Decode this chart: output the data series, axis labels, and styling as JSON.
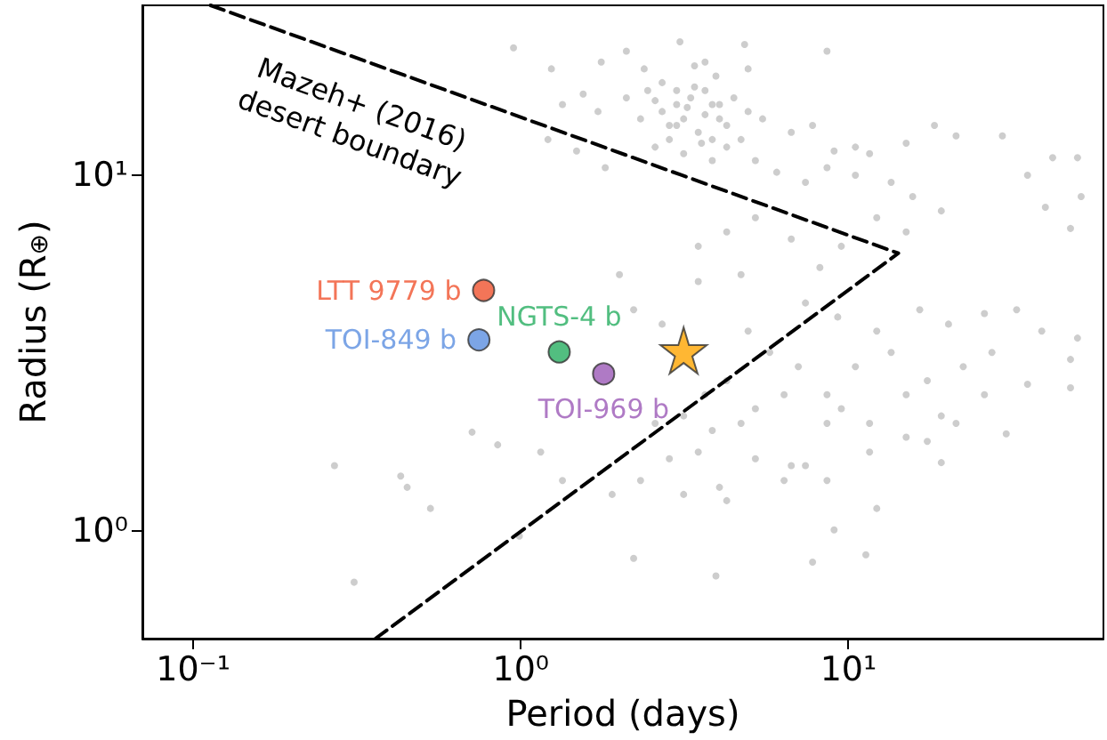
{
  "chart_data": {
    "type": "scatter",
    "xlabel": "Period (days)",
    "ylabel": "Radius (R$_{⊕}$)",
    "log": "xy",
    "xlim": [
      0.07,
      60
    ],
    "ylim": [
      0.5,
      30
    ],
    "xticks": [
      {
        "value": 0.1,
        "label": "10⁻¹"
      },
      {
        "value": 1,
        "label": "10⁰"
      },
      {
        "value": 10,
        "label": "10¹"
      }
    ],
    "yticks": [
      {
        "value": 1,
        "label": "10⁰"
      },
      {
        "value": 10,
        "label": "10¹"
      }
    ],
    "annotations": [
      "Mazeh+ (2016)\ndesert boundary"
    ],
    "series": [
      {
        "color": "#c0c0c0",
        "marker": "circle",
        "x": [
          0.95,
          1.24,
          1.76,
          2.1,
          2.38,
          3.06,
          3.39,
          3.65,
          4.82,
          3.94,
          8.6,
          4.94,
          1.34,
          1.55,
          1.72,
          2.1,
          2.44,
          2.7,
          2.99,
          3.3,
          3.65,
          4.04,
          4.47,
          4.94,
          5.47,
          2.32,
          2.84,
          3.14,
          3.48,
          3.84,
          4.25,
          4.7,
          2.57,
          3.14,
          3.84,
          5.2,
          6.69,
          7.77,
          9.04,
          10.5,
          11.6,
          15.0,
          18.3,
          21.3,
          29.5,
          42.0,
          50.0,
          35.2,
          39.9,
          47.6,
          51.3,
          1.21,
          1.48,
          1.81,
          6.04,
          7.39,
          8.6,
          10.5,
          13.5,
          15.7,
          19.2,
          12.2,
          15.0,
          4.25,
          5.2,
          3.48,
          6.69,
          8.18,
          9.51,
          2.0,
          3.48,
          4.7,
          2.21,
          2.7,
          7.39,
          9.27,
          12.2,
          16.5,
          20.2,
          26.0,
          32.6,
          38.9,
          47.6,
          50.0,
          27.4,
          22.4,
          17.4,
          13.5,
          10.5,
          8.6,
          7.03,
          5.75,
          4.94,
          4.25,
          5.2,
          6.36,
          9.51,
          11.6,
          15.0,
          19.2,
          26.0,
          35.2,
          47.6,
          30.3,
          19.2,
          15.0,
          11.6,
          8.6,
          6.69,
          5.2,
          4.7,
          3.84,
          3.65,
          3.14,
          3.48,
          4.04,
          2.84,
          2.32,
          2.21,
          3.94,
          7.77,
          11.3,
          12.2,
          17.4,
          21.3,
          0.27,
          0.43,
          0.45,
          0.53,
          0.71,
          0.85,
          1.15,
          1.34,
          0.99,
          0.31,
          2.57,
          1.9,
          8.6,
          6.36,
          7.39,
          4.25,
          3.14,
          9.04,
          2.7,
          2.99,
          3.65,
          4.04,
          3.22,
          3.56,
          2.84,
          4.25,
          3.84,
          3.39,
          2.99,
          2.57
        ],
        "values": [
          22.8,
          19.9,
          20.8,
          22.3,
          19.9,
          23.7,
          20.3,
          20.8,
          23.3,
          19.0,
          22.3,
          19.9,
          15.8,
          16.9,
          15.1,
          16.5,
          17.3,
          18.2,
          15.8,
          16.5,
          17.3,
          15.8,
          16.5,
          15.1,
          14.4,
          14.4,
          13.8,
          14.4,
          13.2,
          12.6,
          13.8,
          12.6,
          12.0,
          11.5,
          11.0,
          11.0,
          13.2,
          13.8,
          11.7,
          12.0,
          11.5,
          12.3,
          13.8,
          12.9,
          12.9,
          11.2,
          11.2,
          10.0,
          8.13,
          7.09,
          8.71,
          12.6,
          11.7,
          10.5,
          10.2,
          9.55,
          10.5,
          10.0,
          9.55,
          8.71,
          7.94,
          7.6,
          6.93,
          6.93,
          7.6,
          6.32,
          6.62,
          5.51,
          6.32,
          5.26,
          5.03,
          5.26,
          4.19,
          3.82,
          4.38,
          4.0,
          3.65,
          4.19,
          3.82,
          4.09,
          4.19,
          3.65,
          3.04,
          3.49,
          3.18,
          2.9,
          2.65,
          3.18,
          2.9,
          2.42,
          2.9,
          3.18,
          3.65,
          2.65,
          2.21,
          2.42,
          2.21,
          2.01,
          2.42,
          2.11,
          2.42,
          2.59,
          2.53,
          1.88,
          1.56,
          1.84,
          1.67,
          2.01,
          1.53,
          1.6,
          2.01,
          1.92,
          2.42,
          2.11,
          1.67,
          1.33,
          1.6,
          1.39,
          0.84,
          0.75,
          0.82,
          0.86,
          1.16,
          1.79,
          2.01,
          1.53,
          1.43,
          1.33,
          1.16,
          1.9,
          1.75,
          1.67,
          1.39,
          0.97,
          0.72,
          2.01,
          1.27,
          1.39,
          1.39,
          1.53,
          1.22,
          1.27,
          1.01,
          15.1,
          13.8,
          14.8,
          14.4,
          15.5,
          12.3,
          12.6,
          12.0,
          15.8,
          17.7,
          17.3,
          16.2
        ]
      },
      {
        "type": "line",
        "color": "#000000",
        "line_style": "dashed",
        "marker": "none",
        "x": [
          0.113,
          14.2,
          0.36
        ],
        "values": [
          30,
          6.04,
          0.5
        ]
      },
      {
        "name": "LTT 9779 b",
        "color": "#f0522e",
        "marker": "circle",
        "x": [
          0.77
        ],
        "values": [
          4.75
        ]
      },
      {
        "name": "TOI-849 b",
        "color": "#5b8fe0",
        "marker": "circle",
        "x": [
          0.745
        ],
        "values": [
          3.45
        ]
      },
      {
        "name": "NGTS-4 b",
        "color": "#27ae60",
        "marker": "circle",
        "x": [
          1.31
        ],
        "values": [
          3.19
        ]
      },
      {
        "name": "TOI-969 b",
        "color": "#9b59b6",
        "marker": "circle",
        "x": [
          1.79
        ],
        "values": [
          2.77
        ]
      },
      {
        "color": "#ffa500",
        "marker": "star",
        "x": [
          3.14
        ],
        "values": [
          3.22
        ]
      }
    ]
  }
}
